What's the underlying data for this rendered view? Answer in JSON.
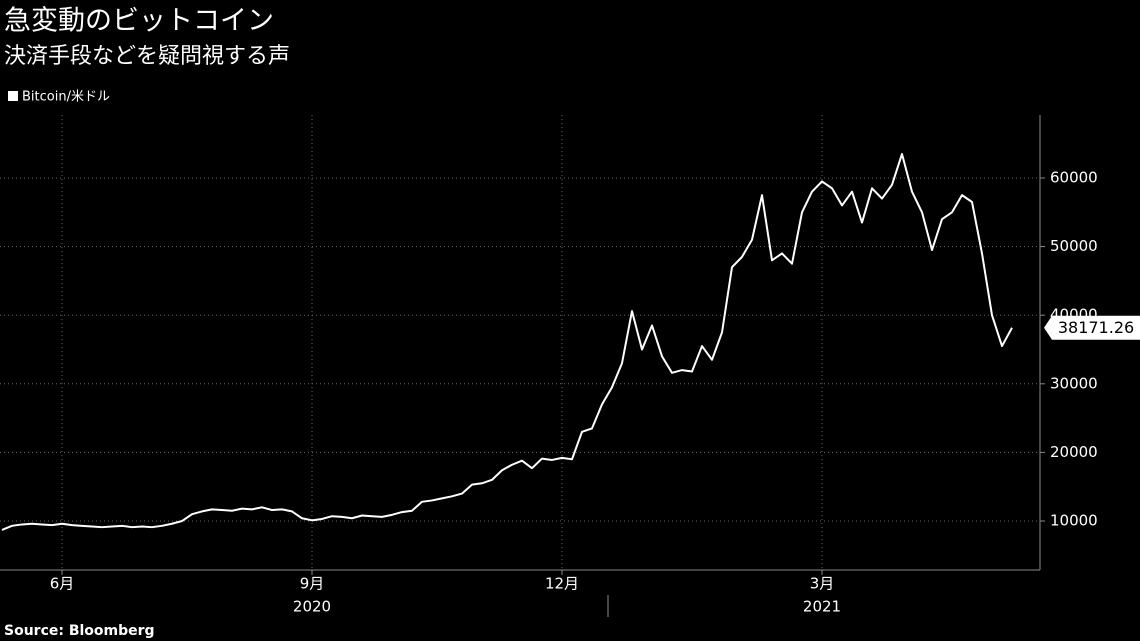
{
  "chart_data": {
    "type": "line",
    "title": "急変動のビットコイン",
    "subtitle": "決済手段などを疑問視する声",
    "source": "Source: Bloomberg",
    "years": [
      "2020",
      "2021"
    ],
    "categories": [
      null,
      null,
      null,
      null,
      null,
      null,
      "6月",
      null,
      null,
      null,
      null,
      null,
      null,
      null,
      null,
      null,
      null,
      null,
      null,
      null,
      null,
      null,
      null,
      null,
      null,
      null,
      null,
      null,
      null,
      null,
      null,
      "9月",
      null,
      null,
      null,
      null,
      null,
      null,
      null,
      null,
      null,
      null,
      null,
      null,
      null,
      null,
      null,
      null,
      null,
      null,
      null,
      null,
      null,
      null,
      null,
      null,
      "12月",
      null,
      null,
      null,
      null,
      null,
      null,
      null,
      null,
      null,
      null,
      null,
      null,
      null,
      null,
      null,
      null,
      null,
      null,
      null,
      null,
      null,
      null,
      null,
      null,
      null,
      "3月",
      null,
      null,
      null,
      null,
      null,
      null,
      null,
      null,
      null,
      null,
      null,
      null,
      null,
      null,
      null,
      null,
      null,
      null,
      null
    ],
    "series": [
      {
        "name": "Bitcoin/米ドル",
        "color": "#ffffff",
        "values": [
          8700,
          9300,
          9500,
          9600,
          9500,
          9400,
          9600,
          9400,
          9300,
          9200,
          9100,
          9200,
          9300,
          9100,
          9200,
          9100,
          9300,
          9600,
          10000,
          11000,
          11400,
          11700,
          11600,
          11500,
          11800,
          11700,
          12000,
          11600,
          11700,
          11400,
          10400,
          10100,
          10300,
          10700,
          10600,
          10400,
          10800,
          10700,
          10600,
          10900,
          11300,
          11500,
          12800,
          13000,
          13300,
          13600,
          14000,
          15300,
          15500,
          16000,
          17400,
          18200,
          18800,
          17700,
          19100,
          18900,
          19200,
          19000,
          23000,
          23500,
          27000,
          29500,
          33000,
          40600,
          35000,
          38500,
          34000,
          31600,
          32000,
          31800,
          35500,
          33500,
          37500,
          47000,
          48500,
          51000,
          57500,
          48000,
          49000,
          47500,
          55000,
          58000,
          59500,
          58500,
          56000,
          58000,
          53500,
          58500,
          57000,
          59000,
          63500,
          58000,
          55000,
          49500,
          54000,
          55000,
          57500,
          56500,
          49000,
          40000,
          35500,
          38171.26
        ]
      }
    ],
    "ylim": [
      2860,
      69180
    ],
    "yticks": [
      10000,
      20000,
      30000,
      40000,
      50000,
      60000
    ],
    "grid": true,
    "legend": "top-left"
  }
}
